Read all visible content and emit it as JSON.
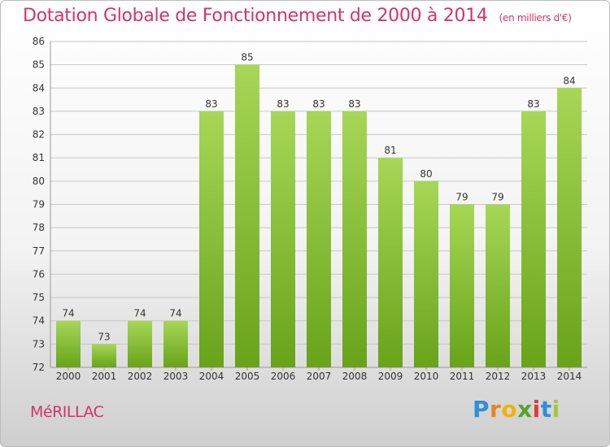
{
  "header": {
    "title": "Dotation Globale de Fonctionnement de 2000 à 2014",
    "unit": "(en milliers d'€)"
  },
  "footer": {
    "commune": "MéRILLAC",
    "logo_letters": [
      "P",
      "r",
      "o",
      "x",
      "i",
      "t",
      "i"
    ],
    "logo_colors": [
      "#2f8fd8",
      "#e3842a",
      "#f0b400",
      "#5aa02c",
      "#e23b3b",
      "#2f8fd8",
      "#a8c63a"
    ]
  },
  "colors": {
    "bar_top": "#a6d756",
    "bar_bottom": "#68a31a",
    "grid": "#c8c8c8",
    "axis_text": "#333333"
  },
  "chart_data": {
    "type": "bar",
    "title": "Dotation Globale de Fonctionnement de 2000 à 2014",
    "xlabel": "",
    "ylabel": "",
    "categories": [
      "2000",
      "2001",
      "2002",
      "2003",
      "2004",
      "2005",
      "2006",
      "2007",
      "2008",
      "2009",
      "2010",
      "2011",
      "2012",
      "2013",
      "2014"
    ],
    "values": [
      74,
      73,
      74,
      74,
      83,
      85,
      83,
      83,
      83,
      81,
      80,
      79,
      79,
      83,
      84
    ],
    "ylim": [
      72,
      86
    ],
    "yticks": [
      72,
      73,
      74,
      75,
      76,
      77,
      78,
      79,
      80,
      81,
      82,
      83,
      84,
      85,
      86
    ],
    "grid": true,
    "legend": "none"
  }
}
